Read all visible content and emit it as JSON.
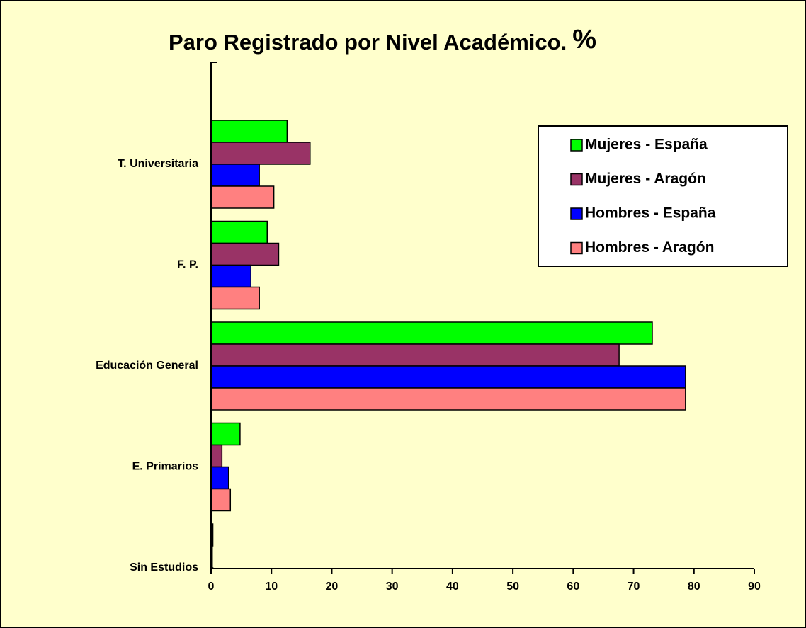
{
  "chart_data": {
    "type": "hbar",
    "title": "Paro Registrado por Nivel Académico.",
    "title_unit": "%",
    "categories": [
      "T. Universitaria",
      "F. P.",
      "Educación General",
      "E. Primarios",
      "Sin Estudios"
    ],
    "series": [
      {
        "name": "Mujeres - España",
        "color": "#00ff00",
        "values": [
          12.6,
          9.3,
          73.1,
          4.8,
          0.3
        ]
      },
      {
        "name": "Mujeres - Aragón",
        "color": "#993366",
        "values": [
          16.4,
          11.2,
          67.6,
          1.8,
          0.2
        ]
      },
      {
        "name": "Hombres - España",
        "color": "#0000ff",
        "values": [
          8.0,
          6.6,
          78.6,
          2.9,
          0.3
        ]
      },
      {
        "name": "Hombres - Aragón",
        "color": "#ff8080",
        "values": [
          10.4,
          8.0,
          78.6,
          3.2,
          0.2
        ]
      }
    ],
    "xlim": [
      0,
      90
    ],
    "xticks": [
      0,
      10,
      20,
      30,
      40,
      50,
      60,
      70,
      80,
      90
    ],
    "legend": "upper-right"
  }
}
